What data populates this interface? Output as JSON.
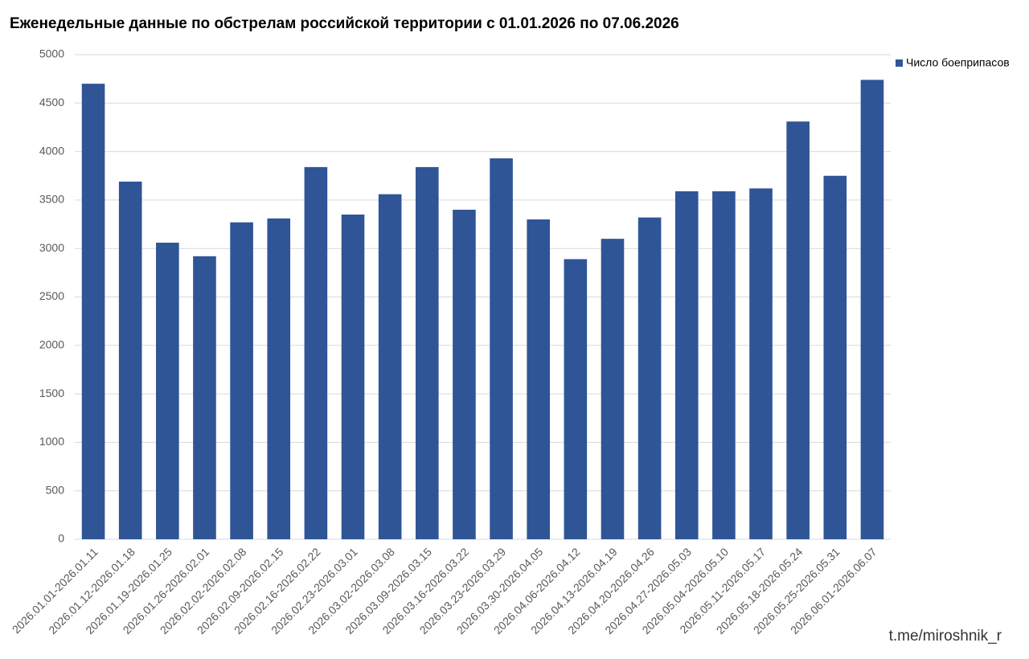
{
  "chart_data": {
    "type": "bar",
    "title": "Еженедельные данные по обстрелам российской территории с 01.01.2026 по 07.06.2026",
    "categories": [
      "2026.01.01-2026.01.11",
      "2026.01.12-2026.01.18",
      "2026.01.19-2026.01.25",
      "2026.01.26-2026.02.01",
      "2026.02.02-2026.02.08",
      "2026.02.09-2026.02.15",
      "2026.02.16-2026.02.22",
      "2026.02.23-2026.03.01",
      "2026.03.02-2026.03.08",
      "2026.03.09-2026.03.15",
      "2026.03.16-2026.03.22",
      "2026.03.23-2026.03.29",
      "2026.03.30-2026.04.05",
      "2026.04.06-2026.04.12",
      "2026.04.13-2026.04.19",
      "2026.04.20-2026.04.26",
      "2026.04.27-2026.05.03",
      "2026.05.04-2026.05.10",
      "2026.05.11-2026.05.17",
      "2026.05.18-2026.05.24",
      "2026.05.25-2026.05.31",
      "2026.06.01-2026.06.07"
    ],
    "series": [
      {
        "name": "Число боеприпасов",
        "color": "#2f5597",
        "values": [
          4700,
          3690,
          3060,
          2920,
          3270,
          3310,
          3840,
          3350,
          3560,
          3840,
          3400,
          3930,
          3300,
          2890,
          3100,
          3320,
          3590,
          3590,
          3620,
          4310,
          3750,
          4740
        ]
      }
    ],
    "ylim": [
      0,
      5000
    ],
    "yticks": [
      0,
      500,
      1000,
      1500,
      2000,
      2500,
      3000,
      3500,
      4000,
      4500,
      5000
    ],
    "grid": true,
    "legend": "top-right",
    "source": "t.me/miroshnik_r"
  }
}
